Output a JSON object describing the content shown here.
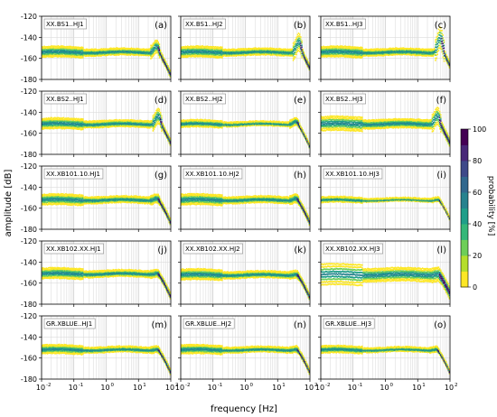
{
  "chart_data": {
    "type": "heatmap",
    "description_kind": "probabilistic power spectral density grid",
    "ylabel": "amplitude [dB]",
    "xlabel": "frequency [Hz]",
    "xscale": "log",
    "xlim": [
      0.01,
      100
    ],
    "ylim": [
      -180,
      -120
    ],
    "yticks": [
      "-120",
      "-140",
      "-160",
      "-180"
    ],
    "xticks": [
      "10",
      "10",
      "10",
      "10",
      "10"
    ],
    "xtick_exponents": [
      "-2",
      "-1",
      "0",
      "1",
      "2"
    ],
    "colorbar": {
      "label": "probability [%]",
      "range": [
        0,
        100
      ],
      "ticks": [
        "0",
        "20",
        "40",
        "60",
        "80",
        "100"
      ],
      "colormap": "viridis_r",
      "colors": [
        "#fde725",
        "#b5de2b",
        "#6ece58",
        "#35b779",
        "#1f9e89",
        "#26828e",
        "#31688e",
        "#3e4989",
        "#482878",
        "#440154"
      ]
    },
    "grid": true,
    "rows": 5,
    "cols": 3,
    "panels": [
      {
        "letter": "(a)",
        "station": "XX.BS1..HJ1",
        "level": -154,
        "corner_hz": 40,
        "peak_db": 6,
        "spread": 3
      },
      {
        "letter": "(b)",
        "station": "XX.BS1..HJ2",
        "level": -154,
        "corner_hz": 50,
        "peak_db": 10,
        "spread": 3
      },
      {
        "letter": "(c)",
        "station": "XX.BS1..HJ3",
        "level": -154,
        "corner_hz": 55,
        "peak_db": 14,
        "spread": 3
      },
      {
        "letter": "(d)",
        "station": "XX.BS2..HJ1",
        "level": -151,
        "corner_hz": 45,
        "peak_db": 8,
        "spread": 3
      },
      {
        "letter": "(e)",
        "station": "XX.BS2..HJ2",
        "level": -151,
        "corner_hz": 40,
        "peak_db": 3,
        "spread": 2
      },
      {
        "letter": "(f)",
        "station": "XX.BS2..HJ3",
        "level": -151,
        "corner_hz": 45,
        "peak_db": 8,
        "spread": 4
      },
      {
        "letter": "(g)",
        "station": "XX.XB101.10.HJ1",
        "level": -152,
        "corner_hz": 40,
        "peak_db": 2,
        "spread": 3
      },
      {
        "letter": "(h)",
        "station": "XX.XB101.10.HJ2",
        "level": -152,
        "corner_hz": 40,
        "peak_db": 2,
        "spread": 3
      },
      {
        "letter": "(i)",
        "station": "XX.XB101.10.HJ3",
        "level": -152,
        "corner_hz": 45,
        "peak_db": 1,
        "spread": 1.5
      },
      {
        "letter": "(j)",
        "station": "XX.XB102.XX.HJ1",
        "level": -151,
        "corner_hz": 40,
        "peak_db": 1,
        "spread": 3
      },
      {
        "letter": "(k)",
        "station": "XX.XB102.XX.HJ2",
        "level": -152,
        "corner_hz": 40,
        "peak_db": 1,
        "spread": 3
      },
      {
        "letter": "(l)",
        "station": "XX.XB102.XX.HJ3",
        "level": -152,
        "corner_hz": 45,
        "peak_db": 1,
        "spread": 6
      },
      {
        "letter": "(m)",
        "station": "GR.XBLUE..HJ1",
        "level": -152,
        "corner_hz": 40,
        "peak_db": 1,
        "spread": 2.5
      },
      {
        "letter": "(n)",
        "station": "GR.XBLUE..HJ2",
        "level": -152,
        "corner_hz": 40,
        "peak_db": 1,
        "spread": 2.5
      },
      {
        "letter": "(o)",
        "station": "GR.XBLUE..HJ3",
        "level": -152,
        "corner_hz": 40,
        "peak_db": 1,
        "spread": 2
      }
    ]
  }
}
